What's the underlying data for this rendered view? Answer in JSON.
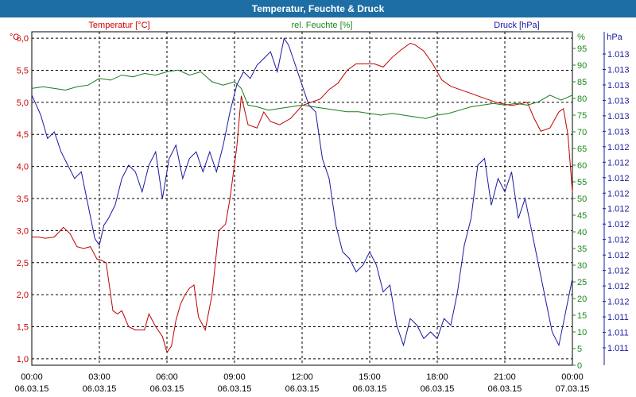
{
  "window": {
    "title": "Temperatur, Feuchte & Druck"
  },
  "colors": {
    "temperature": "#c00000",
    "humidity": "#1a7a1a",
    "pressure": "#1a1aa0",
    "titlebar": "#1c6ea4"
  },
  "chart_data": {
    "type": "line",
    "title": "Temperatur, Feuchte & Druck",
    "grid": true,
    "x_ticks": [
      {
        "time": "00:00",
        "date": "06.03.15"
      },
      {
        "time": "03:00",
        "date": "06.03.15"
      },
      {
        "time": "06:00",
        "date": "06.03.15"
      },
      {
        "time": "09:00",
        "date": "06.03.15"
      },
      {
        "time": "12:00",
        "date": "06.03.15"
      },
      {
        "time": "15:00",
        "date": "06.03.15"
      },
      {
        "time": "18:00",
        "date": "06.03.15"
      },
      {
        "time": "21:00",
        "date": "06.03.15"
      },
      {
        "time": "00:00",
        "date": "07.03.15"
      }
    ],
    "x_range_hours": [
      0,
      24
    ],
    "axes": {
      "temperature": {
        "label": "Temperatur [°C]",
        "unit": "°C",
        "range": [
          0.9,
          6.1
        ],
        "ticks": [
          "6,0",
          "5,5",
          "5,0",
          "4,5",
          "4,0",
          "3,5",
          "3,0",
          "2,5",
          "2,0",
          "1,5",
          "1,0"
        ],
        "tick_values": [
          6.0,
          5.5,
          5.0,
          4.5,
          4.0,
          3.5,
          3.0,
          2.5,
          2.0,
          1.5,
          1.0
        ]
      },
      "humidity": {
        "label": "rel. Feuchte [%]",
        "unit": "%",
        "range": [
          0,
          100
        ],
        "ticks": [
          "95",
          "90",
          "85",
          "80",
          "75",
          "70",
          "65",
          "60",
          "55",
          "50",
          "45",
          "40",
          "35",
          "30",
          "25",
          "20",
          "15",
          "10",
          "5",
          "0"
        ],
        "tick_values": [
          95,
          90,
          85,
          80,
          75,
          70,
          65,
          60,
          55,
          50,
          45,
          40,
          35,
          30,
          25,
          20,
          15,
          10,
          5,
          0
        ]
      },
      "pressure": {
        "label": "Druck [hPa]",
        "unit": "hPa",
        "ticks": [
          "1.013",
          "1.013",
          "1.013",
          "1.013",
          "1.013",
          "1.013",
          "1.012",
          "1.012",
          "1.012",
          "1.012",
          "1.012",
          "1.012",
          "1.012",
          "1.012",
          "1.012",
          "1.012",
          "1.012",
          "1.011",
          "1.011",
          "1.011"
        ]
      }
    },
    "series": [
      {
        "name": "Temperatur [°C]",
        "axis": "temperature",
        "x": [
          0,
          0.3,
          0.6,
          1.0,
          1.4,
          1.7,
          2.0,
          2.3,
          2.6,
          2.9,
          3.0,
          3.3,
          3.6,
          3.8,
          4.0,
          4.3,
          4.6,
          5.0,
          5.2,
          5.5,
          5.8,
          6.0,
          6.2,
          6.4,
          6.6,
          6.8,
          7.0,
          7.2,
          7.4,
          7.7,
          8.0,
          8.3,
          8.6,
          8.8,
          9.1,
          9.3,
          9.6,
          10.0,
          10.3,
          10.6,
          11.0,
          11.5,
          12.0,
          12.4,
          12.8,
          13.2,
          13.6,
          14.0,
          14.4,
          14.8,
          15.2,
          15.6,
          16.0,
          16.4,
          16.8,
          17.0,
          17.4,
          17.8,
          18.2,
          18.6,
          19.0,
          19.4,
          19.8,
          20.2,
          20.6,
          21.0,
          21.3,
          21.6,
          22.0,
          22.3,
          22.6,
          23.0,
          23.4,
          23.6,
          23.8,
          24.0
        ],
        "values": [
          2.9,
          2.9,
          2.88,
          2.9,
          3.05,
          2.95,
          2.75,
          2.72,
          2.75,
          2.55,
          2.55,
          2.5,
          1.75,
          1.7,
          1.75,
          1.5,
          1.45,
          1.45,
          1.7,
          1.5,
          1.35,
          1.1,
          1.2,
          1.6,
          1.85,
          2.0,
          2.1,
          2.15,
          1.65,
          1.45,
          2.0,
          3.0,
          3.1,
          3.5,
          4.3,
          5.1,
          4.65,
          4.6,
          4.85,
          4.7,
          4.65,
          4.75,
          4.95,
          5.0,
          5.05,
          5.2,
          5.3,
          5.5,
          5.6,
          5.6,
          5.6,
          5.55,
          5.7,
          5.82,
          5.92,
          5.9,
          5.8,
          5.6,
          5.35,
          5.25,
          5.2,
          5.15,
          5.1,
          5.05,
          5.0,
          4.97,
          4.95,
          4.97,
          5.0,
          4.75,
          4.55,
          4.6,
          4.85,
          4.9,
          4.5,
          3.6
        ]
      },
      {
        "name": "rel. Feuchte [%]",
        "axis": "humidity",
        "x": [
          0,
          0.5,
          1.0,
          1.5,
          2.0,
          2.5,
          3.0,
          3.5,
          4.0,
          4.5,
          5.0,
          5.5,
          6.0,
          6.5,
          7.0,
          7.5,
          8.0,
          8.5,
          9.0,
          9.3,
          9.6,
          10.0,
          10.5,
          11.0,
          11.5,
          12.0,
          12.5,
          13.0,
          13.5,
          14.0,
          14.5,
          15.0,
          15.5,
          16.0,
          16.5,
          17.0,
          17.5,
          18.0,
          18.5,
          19.0,
          19.5,
          20.0,
          20.5,
          21.0,
          21.5,
          22.0,
          22.5,
          23.0,
          23.5,
          24.0
        ],
        "values": [
          83,
          83.5,
          83,
          82.5,
          83.5,
          84,
          86,
          85.5,
          87,
          86.5,
          87.5,
          87,
          88,
          88.5,
          87,
          88,
          85,
          84,
          85,
          83,
          78,
          77.5,
          76.5,
          77,
          77.5,
          78,
          77.5,
          77,
          76.5,
          76,
          76,
          75.5,
          75,
          75.5,
          75,
          74.5,
          74,
          75,
          75.5,
          76.5,
          77.5,
          78,
          78.5,
          78,
          78.5,
          78,
          79,
          81,
          79.5,
          81
        ]
      },
      {
        "name": "Druck [hPa]",
        "axis": "pressure",
        "x": [
          0,
          0.2,
          0.4,
          0.7,
          1.0,
          1.3,
          1.6,
          1.9,
          2.2,
          2.5,
          2.8,
          3.0,
          3.2,
          3.4,
          3.7,
          4.0,
          4.3,
          4.6,
          4.9,
          5.2,
          5.5,
          5.8,
          6.1,
          6.4,
          6.7,
          7.0,
          7.3,
          7.6,
          7.9,
          8.2,
          8.5,
          8.8,
          9.1,
          9.4,
          9.7,
          10.0,
          10.3,
          10.6,
          10.9,
          11.2,
          11.4,
          11.6,
          11.8,
          12.0,
          12.3,
          12.6,
          12.9,
          13.2,
          13.5,
          13.8,
          14.1,
          14.4,
          14.7,
          15.0,
          15.3,
          15.6,
          15.9,
          16.2,
          16.5,
          16.8,
          17.1,
          17.4,
          17.7,
          18.0,
          18.3,
          18.6,
          18.9,
          19.2,
          19.5,
          19.8,
          20.1,
          20.4,
          20.7,
          21.0,
          21.3,
          21.6,
          21.9,
          22.2,
          22.5,
          22.8,
          23.1,
          23.4,
          23.7,
          24.0
        ],
        "values": [
          81,
          78,
          75,
          68,
          70,
          64,
          60,
          56,
          58,
          48,
          38,
          36,
          42,
          44,
          48,
          56,
          60,
          58,
          52,
          60,
          64,
          50,
          62,
          66,
          56,
          62,
          64,
          58,
          64,
          58,
          66,
          76,
          84,
          88,
          86,
          90,
          92,
          94,
          88,
          98,
          96,
          92,
          88,
          84,
          78,
          76,
          62,
          56,
          42,
          34,
          32,
          28,
          30,
          34,
          30,
          22,
          24,
          12,
          6,
          14,
          12,
          8,
          10,
          8,
          14,
          12,
          22,
          36,
          44,
          60,
          62,
          48,
          56,
          52,
          58,
          44,
          50,
          40,
          30,
          20,
          10,
          6,
          16,
          26
        ]
      }
    ]
  }
}
